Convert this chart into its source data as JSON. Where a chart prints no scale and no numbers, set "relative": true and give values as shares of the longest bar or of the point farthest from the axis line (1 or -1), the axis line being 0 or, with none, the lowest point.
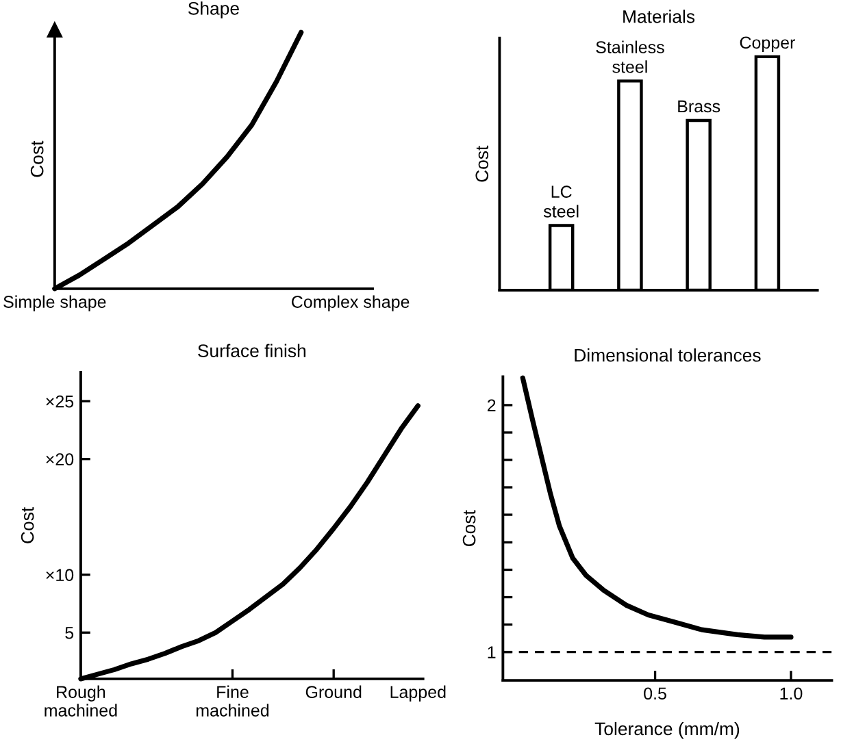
{
  "chart_data": [
    {
      "type": "line",
      "title": "Shape",
      "ylabel": "Cost",
      "relative": true,
      "categories": [
        "Simple shape",
        null,
        null,
        null,
        null,
        null,
        null,
        null,
        null,
        null,
        null,
        null,
        "Complex shape"
      ],
      "series": [
        {
          "color": "#000000",
          "values": [
            0,
            0.053,
            0.115,
            0.178,
            0.249,
            0.32,
            0.409,
            0.515,
            0.639,
            0.808,
            1.0,
            null,
            null
          ]
        }
      ]
    },
    {
      "type": "bar",
      "title": "Materials",
      "ylabel": "Cost",
      "relative": true,
      "categories": [
        "LC\nsteel",
        "Stainless\nsteel",
        "Brass",
        "Copper"
      ],
      "series": [
        {
          "color": "#ffffff",
          "values": [
            0.277,
            0.896,
            0.727,
            1.0
          ]
        }
      ]
    },
    {
      "type": "line",
      "title": "Surface finish",
      "ylabel": "Cost",
      "categories": [
        "Rough\nmachined",
        null,
        null,
        null,
        null,
        null,
        null,
        null,
        null,
        "Fine\nmachined",
        null,
        null,
        null,
        null,
        null,
        "Ground",
        null,
        null,
        null,
        null,
        "Lapped"
      ],
      "ylim": [
        1,
        27.5
      ],
      "yticks": [
        5,
        {
          "value": 10,
          "label": "×10"
        },
        {
          "value": 20,
          "label": "×20"
        },
        {
          "value": 25,
          "label": "×25"
        }
      ],
      "series": [
        {
          "color": "#000000",
          "values": [
            1,
            1.4,
            1.8,
            2.3,
            2.7,
            3.2,
            3.8,
            4.3,
            5.0,
            6.0,
            7.0,
            8.1,
            9.2,
            10.6,
            12.2,
            14.0,
            15.9,
            18.0,
            20.3,
            22.6,
            24.6
          ]
        }
      ]
    },
    {
      "type": "line",
      "title": "Dimensional tolerances",
      "ylabel": "Cost",
      "xlabel": "Tolerance (mm/m)",
      "xlim": [
        -0.06,
        1.15
      ],
      "xticks": [
        0.5,
        {
          "value": 1.0,
          "label": "1.0"
        }
      ],
      "ylim": [
        0.885,
        2.115
      ],
      "yticks": [
        1,
        {
          "value": 1.111,
          "label": null
        },
        {
          "value": 1.222,
          "label": null
        },
        {
          "value": 1.333,
          "label": null
        },
        {
          "value": 1.444,
          "label": null
        },
        {
          "value": 1.556,
          "label": null
        },
        {
          "value": 1.667,
          "label": null
        },
        {
          "value": 1.778,
          "label": null
        },
        {
          "value": 1.889,
          "label": null
        },
        2
      ],
      "ref_lines": [
        {
          "axis": "y",
          "value": 1,
          "color": "#000000",
          "line_style": "dashed"
        }
      ],
      "series": [
        {
          "color": "#000000",
          "x": [
            0.013,
            0.049,
            0.082,
            0.115,
            0.148,
            0.197,
            0.246,
            0.311,
            0.393,
            0.475,
            0.574,
            0.672,
            0.803,
            0.902,
            1.0
          ],
          "values": [
            2.11,
            1.94,
            1.79,
            1.64,
            1.51,
            1.38,
            1.31,
            1.25,
            1.19,
            1.15,
            1.12,
            1.09,
            1.07,
            1.06,
            1.06
          ]
        }
      ]
    }
  ]
}
